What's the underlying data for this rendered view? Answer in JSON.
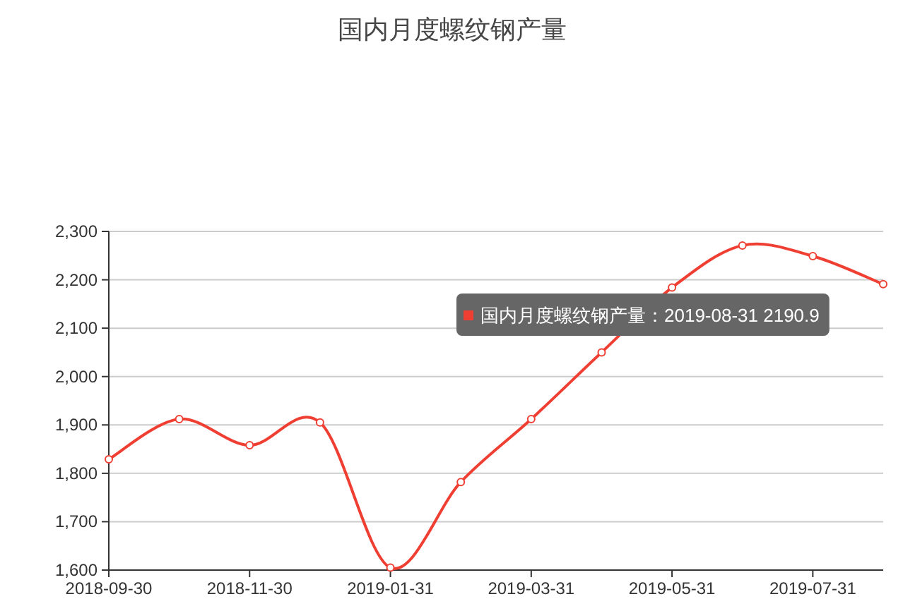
{
  "chart_data": {
    "type": "line",
    "title": "国内月度螺纹钢产量",
    "categories": [
      "2018-09-30",
      null,
      "2018-11-30",
      null,
      "2019-01-31",
      null,
      "2019-03-31",
      null,
      "2019-05-31",
      null,
      "2019-07-31",
      null
    ],
    "series": [
      {
        "color": "#ef3f33",
        "values": [
          1829,
          1912,
          1858,
          1905,
          1605,
          1782,
          1912,
          2050,
          2184,
          2271,
          2249,
          2190.9
        ]
      }
    ],
    "ylim": [
      1600,
      2300
    ],
    "yticks": [
      {
        "value": 1600,
        "label": "1,600"
      },
      {
        "value": 1700,
        "label": "1,700"
      },
      {
        "value": 1800,
        "label": "1,800"
      },
      {
        "value": 1900,
        "label": "1,900"
      },
      {
        "value": 2000,
        "label": "2,000"
      },
      {
        "value": 2100,
        "label": "2,100"
      },
      {
        "value": 2200,
        "label": "2,200"
      },
      {
        "value": 2300,
        "label": "2,300"
      }
    ],
    "grid": "y",
    "marker": "circle",
    "annotations": [
      "国内月度螺纹钢产量：2019-08-31 2190.9"
    ]
  }
}
